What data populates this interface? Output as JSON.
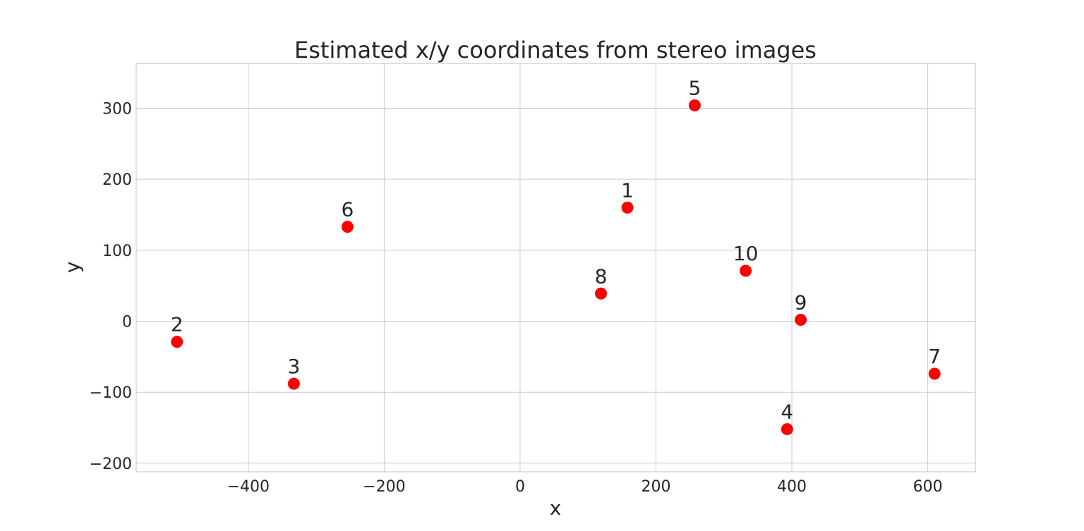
{
  "chart_data": {
    "type": "scatter",
    "title": "Estimated x/y coordinates from stereo images",
    "xlabel": "x",
    "ylabel": "y",
    "xlim": [
      -565,
      670
    ],
    "ylim": [
      -212,
      363
    ],
    "xticks": [
      -400,
      -200,
      0,
      200,
      400,
      600
    ],
    "yticks": [
      -200,
      -100,
      0,
      100,
      200,
      300
    ],
    "grid": true,
    "marker_color": "#ff0000",
    "points": [
      {
        "label": "1",
        "x": 158,
        "y": 160
      },
      {
        "label": "2",
        "x": -505,
        "y": -29
      },
      {
        "label": "3",
        "x": -333,
        "y": -88
      },
      {
        "label": "4",
        "x": 393,
        "y": -152
      },
      {
        "label": "5",
        "x": 257,
        "y": 304
      },
      {
        "label": "6",
        "x": -254,
        "y": 133
      },
      {
        "label": "7",
        "x": 610,
        "y": -74
      },
      {
        "label": "8",
        "x": 119,
        "y": 39
      },
      {
        "label": "9",
        "x": 413,
        "y": 2
      },
      {
        "label": "10",
        "x": 332,
        "y": 71
      }
    ]
  }
}
